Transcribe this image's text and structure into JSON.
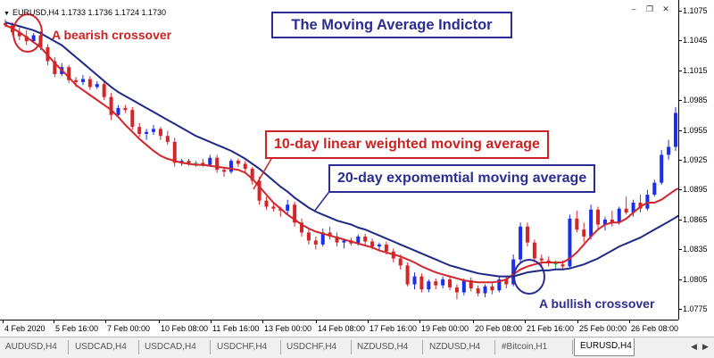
{
  "chart_header": {
    "symbol_text": "EURUSD,H4  1.1733 1.1736 1.1724 1.1730",
    "menu_icon": "triangle-down-icon"
  },
  "window_controls": {
    "minimize": "–",
    "restore": "❐",
    "close": "✕"
  },
  "annotations": {
    "title": "The Moving Average Indictor",
    "bearish_label": "A bearish crossover",
    "bullish_label": "A bullish crossover",
    "lwma_label": "10-day linear weighted moving average",
    "ema_label": "20-day expomemtial moving average"
  },
  "colors": {
    "bull_candle": "#1a2ef0",
    "bear_candle": "#d3262b",
    "doji": "#15a341",
    "lwma": "#d3262b",
    "ema": "#1e2a86",
    "annotation_blue": "#2b2d92",
    "annotation_red": "#cc2222"
  },
  "chart_data": {
    "type": "line",
    "title": "The Moving Average Indictor",
    "symbol": "EURUSD",
    "timeframe": "H4",
    "ylim": [
      1.077,
      1.108
    ],
    "y_ticks": [
      "1.1075",
      "1.1045",
      "1.1015",
      "1.0985",
      "1.0955",
      "1.0925",
      "1.0895",
      "1.0865",
      "1.0835",
      "1.0805",
      "1.0775"
    ],
    "x_ticks": [
      "4 Feb 2020",
      "5 Feb 16:00",
      "7 Feb 00:00",
      "10 Feb 08:00",
      "11 Feb 16:00",
      "13 Feb 00:00",
      "14 Feb 08:00",
      "17 Feb 16:00",
      "19 Feb 00:00",
      "20 Feb 08:00",
      "21 Feb 16:00",
      "25 Feb 00:00",
      "26 Feb 08:00"
    ],
    "series": [
      {
        "name": "10-day linear weighted moving average",
        "values": [
          1.106,
          1.1057,
          1.1053,
          1.1048,
          1.1043,
          1.1038,
          1.103,
          1.1022,
          1.1015,
          1.1008,
          1.1,
          1.0995,
          1.099,
          1.0985,
          1.098,
          1.0975,
          1.0968,
          1.096,
          1.0953,
          1.0946,
          1.094,
          1.0934,
          1.0929,
          1.0926,
          1.0924,
          1.0922,
          1.0921,
          1.092,
          1.092,
          1.0919,
          1.0918,
          1.0917,
          1.0916,
          1.0915,
          1.0912,
          1.0906,
          1.0898,
          1.089,
          1.0882,
          1.0876,
          1.087,
          1.0865,
          1.086,
          1.0856,
          1.0853,
          1.0851,
          1.0849,
          1.0847,
          1.0845,
          1.0843,
          1.0841,
          1.0839,
          1.0837,
          1.0834,
          1.0832,
          1.083,
          1.0828,
          1.0825,
          1.0822,
          1.0818,
          1.0815,
          1.0812,
          1.081,
          1.0808,
          1.0806,
          1.0804,
          1.0803,
          1.0802,
          1.0802,
          1.0802,
          1.0803,
          1.0805,
          1.081,
          1.0815,
          1.0818,
          1.082,
          1.0822,
          1.0822,
          1.0822,
          1.0822,
          1.0826,
          1.0832,
          1.084,
          1.0848,
          1.0855,
          1.086,
          1.0862,
          1.0862,
          1.0866,
          1.0872,
          1.0878,
          1.0882,
          1.0882,
          1.0885,
          1.089,
          1.0895,
          1.0898,
          1.09
        ]
      },
      {
        "name": "20-day expomemtial moving average",
        "values": [
          1.1063,
          1.1061,
          1.1059,
          1.1057,
          1.1055,
          1.1052,
          1.1048,
          1.1044,
          1.104,
          1.1034,
          1.1028,
          1.1022,
          1.1016,
          1.101,
          1.1004,
          1.0998,
          1.0993,
          1.0989,
          1.0985,
          1.0981,
          1.0977,
          1.0973,
          1.0969,
          1.0965,
          1.0961,
          1.0957,
          1.0953,
          1.0949,
          1.0946,
          1.0943,
          1.094,
          1.0937,
          1.0934,
          1.093,
          1.0926,
          1.0921,
          1.0916,
          1.091,
          1.0904,
          1.0898,
          1.0893,
          1.0887,
          1.0882,
          1.0877,
          1.0873,
          1.087,
          1.0867,
          1.0864,
          1.0862,
          1.086,
          1.0857,
          1.0855,
          1.0852,
          1.0849,
          1.0846,
          1.0843,
          1.084,
          1.0837,
          1.0834,
          1.0831,
          1.0828,
          1.0825,
          1.0822,
          1.0819,
          1.0817,
          1.0815,
          1.0813,
          1.0811,
          1.081,
          1.0809,
          1.0808,
          1.0808,
          1.0808,
          1.081,
          1.0812,
          1.0813,
          1.0814,
          1.0814,
          1.0815,
          1.0815,
          1.0816,
          1.0818,
          1.082,
          1.0823,
          1.0826,
          1.083,
          1.0834,
          1.0838,
          1.0841,
          1.0844,
          1.0847,
          1.0851,
          1.0855,
          1.0859,
          1.0863,
          1.0867,
          1.0872,
          1.0878
        ]
      }
    ],
    "candles": [
      [
        1.1062,
        1.1066,
        1.1058,
        1.106
      ],
      [
        1.106,
        1.1063,
        1.105,
        1.1053
      ],
      [
        1.1053,
        1.1058,
        1.1045,
        1.1049
      ],
      [
        1.1049,
        1.1055,
        1.104,
        1.1044
      ],
      [
        1.1044,
        1.1052,
        1.1042,
        1.105
      ],
      [
        1.105,
        1.1054,
        1.1035,
        1.1038
      ],
      [
        1.1038,
        1.1041,
        1.102,
        1.1024
      ],
      [
        1.1024,
        1.1028,
        1.1008,
        1.1011
      ],
      [
        1.1011,
        1.1022,
        1.1009,
        1.1018
      ],
      [
        1.1018,
        1.102,
        1.1002,
        1.1005
      ],
      [
        1.1005,
        1.1008,
        1.0998,
        1.1003
      ],
      [
        1.1003,
        1.101,
        1.1,
        1.1006
      ],
      [
        1.1006,
        1.1009,
        1.0995,
        1.0998
      ],
      [
        1.0998,
        1.1004,
        1.0996,
        1.1001
      ],
      [
        1.1001,
        1.1003,
        1.0985,
        1.0988
      ],
      [
        1.0988,
        1.0992,
        1.0965,
        1.097
      ],
      [
        1.097,
        1.098,
        1.0968,
        1.0977
      ],
      [
        1.0977,
        1.098,
        1.0972,
        1.0975
      ],
      [
        1.0975,
        1.0978,
        1.0955,
        1.0958
      ],
      [
        1.0958,
        1.0962,
        1.0948,
        1.0951
      ],
      [
        1.0951,
        1.0956,
        1.0945,
        1.0953
      ],
      [
        1.0953,
        1.096,
        1.095,
        1.0956
      ],
      [
        1.0956,
        1.0958,
        1.0945,
        1.0949
      ],
      [
        1.0949,
        1.0954,
        1.094,
        1.0943
      ],
      [
        1.0943,
        1.0947,
        1.0918,
        1.0922
      ],
      [
        1.0922,
        1.0926,
        1.0919,
        1.0924
      ],
      [
        1.0924,
        1.0926,
        1.0919,
        1.0921
      ],
      [
        1.0921,
        1.0924,
        1.0918,
        1.0922
      ],
      [
        1.0922,
        1.0926,
        1.0918,
        1.092
      ],
      [
        1.092,
        1.093,
        1.0918,
        1.0927
      ],
      [
        1.0927,
        1.093,
        1.0912,
        1.0915
      ],
      [
        1.0915,
        1.0918,
        1.0908,
        1.0913
      ],
      [
        1.0913,
        1.0926,
        1.0911,
        1.0924
      ],
      [
        1.0924,
        1.0926,
        1.0918,
        1.0921
      ],
      [
        1.0921,
        1.0924,
        1.0912,
        1.0916
      ],
      [
        1.0916,
        1.0918,
        1.09,
        1.0904
      ],
      [
        1.0904,
        1.0908,
        1.088,
        1.0884
      ],
      [
        1.0884,
        1.0888,
        1.0875,
        1.0878
      ],
      [
        1.0878,
        1.0881,
        1.0873,
        1.0876
      ],
      [
        1.0876,
        1.0878,
        1.0868,
        1.0874
      ],
      [
        1.0874,
        1.0885,
        1.087,
        1.088
      ],
      [
        1.088,
        1.0883,
        1.0858,
        1.0862
      ],
      [
        1.0862,
        1.0866,
        1.0848,
        1.0852
      ],
      [
        1.0852,
        1.0855,
        1.084,
        1.0844
      ],
      [
        1.0844,
        1.0848,
        1.0835,
        1.084
      ],
      [
        1.084,
        1.0856,
        1.0838,
        1.0852
      ],
      [
        1.0852,
        1.0858,
        1.0845,
        1.0848
      ],
      [
        1.0848,
        1.0852,
        1.0838,
        1.0842
      ],
      [
        1.0842,
        1.0846,
        1.0836,
        1.0844
      ],
      [
        1.0844,
        1.0847,
        1.0839,
        1.0841
      ],
      [
        1.0841,
        1.085,
        1.0839,
        1.0848
      ],
      [
        1.0848,
        1.0851,
        1.084,
        1.0843
      ],
      [
        1.0843,
        1.0846,
        1.0835,
        1.0838
      ],
      [
        1.0838,
        1.0842,
        1.0834,
        1.084
      ],
      [
        1.084,
        1.0843,
        1.083,
        1.0833
      ],
      [
        1.0833,
        1.0836,
        1.0822,
        1.0826
      ],
      [
        1.0826,
        1.083,
        1.0815,
        1.0819
      ],
      [
        1.0819,
        1.0822,
        1.0798,
        1.08
      ],
      [
        1.08,
        1.0812,
        1.0795,
        1.0808
      ],
      [
        1.0808,
        1.0811,
        1.0792,
        1.0795
      ],
      [
        1.0795,
        1.0805,
        1.0792,
        1.0803
      ],
      [
        1.0803,
        1.0806,
        1.0795,
        1.0799
      ],
      [
        1.0799,
        1.0808,
        1.0796,
        1.0805
      ],
      [
        1.0805,
        1.0808,
        1.0794,
        1.0797
      ],
      [
        1.0797,
        1.08,
        1.0785,
        1.0792
      ],
      [
        1.0792,
        1.0806,
        1.0789,
        1.0804
      ],
      [
        1.0804,
        1.0807,
        1.0793,
        1.0796
      ],
      [
        1.0796,
        1.0799,
        1.0788,
        1.0791
      ],
      [
        1.0791,
        1.08,
        1.0787,
        1.0798
      ],
      [
        1.0798,
        1.0801,
        1.079,
        1.0794
      ],
      [
        1.0794,
        1.0808,
        1.0792,
        1.0805
      ],
      [
        1.0805,
        1.0808,
        1.0796,
        1.08
      ],
      [
        1.08,
        1.083,
        1.0798,
        1.0825
      ],
      [
        1.0825,
        1.0862,
        1.0822,
        1.0858
      ],
      [
        1.0858,
        1.0862,
        1.0838,
        1.0842
      ],
      [
        1.0842,
        1.0845,
        1.0822,
        1.0826
      ],
      [
        1.0826,
        1.083,
        1.0818,
        1.0824
      ],
      [
        1.0824,
        1.0828,
        1.0818,
        1.0821
      ],
      [
        1.0821,
        1.0824,
        1.0816,
        1.082
      ],
      [
        1.082,
        1.0824,
        1.0816,
        1.0818
      ],
      [
        1.0818,
        1.087,
        1.0816,
        1.0866
      ],
      [
        1.0866,
        1.0874,
        1.0852,
        1.0855
      ],
      [
        1.0855,
        1.0862,
        1.0842,
        1.0848
      ],
      [
        1.0848,
        1.088,
        1.0845,
        1.0875
      ],
      [
        1.0875,
        1.0878,
        1.0855,
        1.086
      ],
      [
        1.086,
        1.0868,
        1.0854,
        1.0865
      ],
      [
        1.0865,
        1.0874,
        1.0858,
        1.0862
      ],
      [
        1.0862,
        1.0878,
        1.086,
        1.0876
      ],
      [
        1.0876,
        1.0888,
        1.087,
        1.0872
      ],
      [
        1.0872,
        1.0885,
        1.0868,
        1.0882
      ],
      [
        1.0882,
        1.089,
        1.0872,
        1.0876
      ],
      [
        1.0876,
        1.0895,
        1.0874,
        1.089
      ],
      [
        1.089,
        1.0905,
        1.0888,
        1.0902
      ],
      [
        1.0902,
        1.0935,
        1.09,
        1.093
      ],
      [
        1.093,
        1.0945,
        1.0925,
        1.0938
      ],
      [
        1.0938,
        1.0978,
        1.0934,
        1.0972
      ]
    ]
  },
  "tabs": [
    {
      "label": "AUDUSD,H4",
      "active": false
    },
    {
      "label": "USDCAD,H4",
      "active": false
    },
    {
      "label": "USDCAD,H4",
      "active": false
    },
    {
      "label": "USDCHF,H4",
      "active": false
    },
    {
      "label": "USDCHF,H4",
      "active": false
    },
    {
      "label": "NZDUSD,H4",
      "active": false
    },
    {
      "label": "NZDUSD,H4",
      "active": false
    },
    {
      "label": "#Bitcoin,H1",
      "active": false
    },
    {
      "label": "EURUSD,H4",
      "active": true
    }
  ],
  "tab_nav": {
    "prev": "◀",
    "next": "▶"
  }
}
